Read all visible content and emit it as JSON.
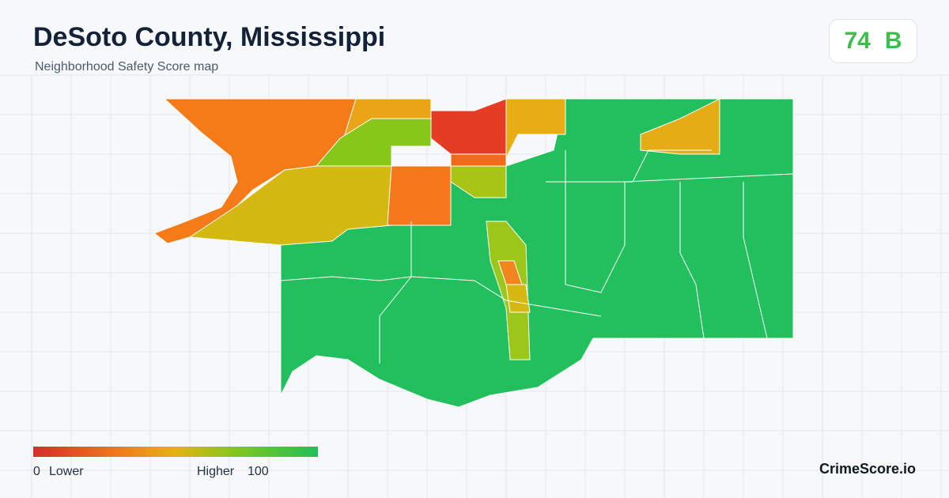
{
  "header": {
    "title": "DeSoto County, Mississippi",
    "subtitle": "Neighborhood Safety Score map"
  },
  "score": {
    "value": "74",
    "grade": "B"
  },
  "legend": {
    "min": "0",
    "min_label": "Lower",
    "max_label": "Higher",
    "max": "100"
  },
  "brand": "CrimeScore.io"
}
